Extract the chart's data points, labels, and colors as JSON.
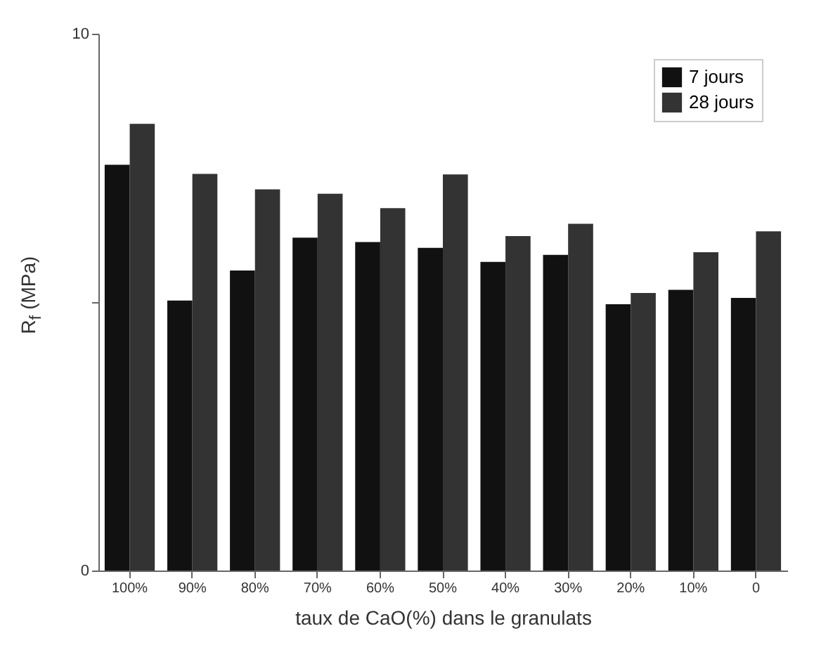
{
  "chart_data": {
    "type": "bar",
    "xlabel": "taux de CaO(%) dans le granulats",
    "ylabel": "R$_{f}$ (MPa)",
    "categories": [
      "100%",
      "90%",
      "80%",
      "70%",
      "60%",
      "50%",
      "40%",
      "30%",
      "20%",
      "10%",
      "0"
    ],
    "series": [
      {
        "name": "7 jours",
        "color": "#111111",
        "values": [
          7.56,
          5.03,
          5.59,
          6.2,
          6.12,
          6.01,
          5.75,
          5.88,
          4.96,
          5.23,
          5.08
        ]
      },
      {
        "name": "28 jours",
        "color": "#333333",
        "values": [
          8.32,
          7.39,
          7.1,
          7.02,
          6.75,
          7.38,
          6.23,
          6.46,
          5.17,
          5.93,
          6.32
        ]
      }
    ],
    "ylim": [
      0,
      10
    ],
    "yticks": [
      0,
      {
        "value": 5,
        "label": null
      },
      10
    ],
    "grid": false,
    "legend": "top right"
  }
}
